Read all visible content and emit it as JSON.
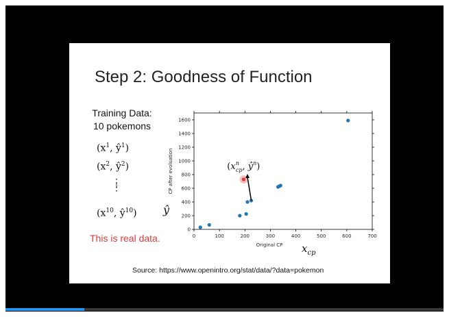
{
  "slide": {
    "title": "Step 2: Goodness of Function",
    "training_title": "Training Data:",
    "training_subtitle": "10 pokemons",
    "pairs": [
      {
        "x": "(x",
        "xsup": "1",
        "mid": ", ŷ",
        "ysup": "1",
        "end": ")"
      },
      {
        "x": "(x",
        "xsup": "2",
        "mid": ", ŷ",
        "ysup": "2",
        "end": ")"
      },
      {
        "x": "(x",
        "xsup": "10",
        "mid": ", ŷ",
        "ysup": "10",
        "end": ")"
      }
    ],
    "vdots": "⋮",
    "real_note": "This is real data.",
    "yhat_label": "ŷ",
    "xcp_label": "x",
    "xcp_sub": "cp",
    "annotation": "(x_cp^n, ŷ^n)",
    "source": "Source: https://www.openintro.org/stat/data/?data=pokemon"
  },
  "colors": {
    "player_bg": "#000000",
    "point": "#1f77b4",
    "highlight": "#e53935",
    "real_note": "#e53935",
    "progress": "#2196f3"
  },
  "progress": {
    "fraction": 0.18
  },
  "chart_data": {
    "type": "scatter",
    "xlabel": "Original CP",
    "ylabel": "CP after evoluation",
    "xlim": [
      0,
      700
    ],
    "ylim": [
      0,
      1700
    ],
    "x_ticks": [
      0,
      100,
      200,
      300,
      400,
      500,
      600,
      700
    ],
    "y_ticks": [
      0,
      200,
      400,
      600,
      800,
      1000,
      1200,
      1400,
      1600
    ],
    "points": [
      {
        "x": 25,
        "y": 30
      },
      {
        "x": 60,
        "y": 65
      },
      {
        "x": 180,
        "y": 200
      },
      {
        "x": 205,
        "y": 225
      },
      {
        "x": 210,
        "y": 400
      },
      {
        "x": 225,
        "y": 420
      },
      {
        "x": 330,
        "y": 620
      },
      {
        "x": 335,
        "y": 630
      },
      {
        "x": 340,
        "y": 640
      },
      {
        "x": 605,
        "y": 1590
      }
    ],
    "highlight_point": {
      "x": 195,
      "y": 730
    },
    "arrow": {
      "from": {
        "x": 225,
        "y": 420
      },
      "to": {
        "x": 210,
        "y": 800
      }
    }
  }
}
